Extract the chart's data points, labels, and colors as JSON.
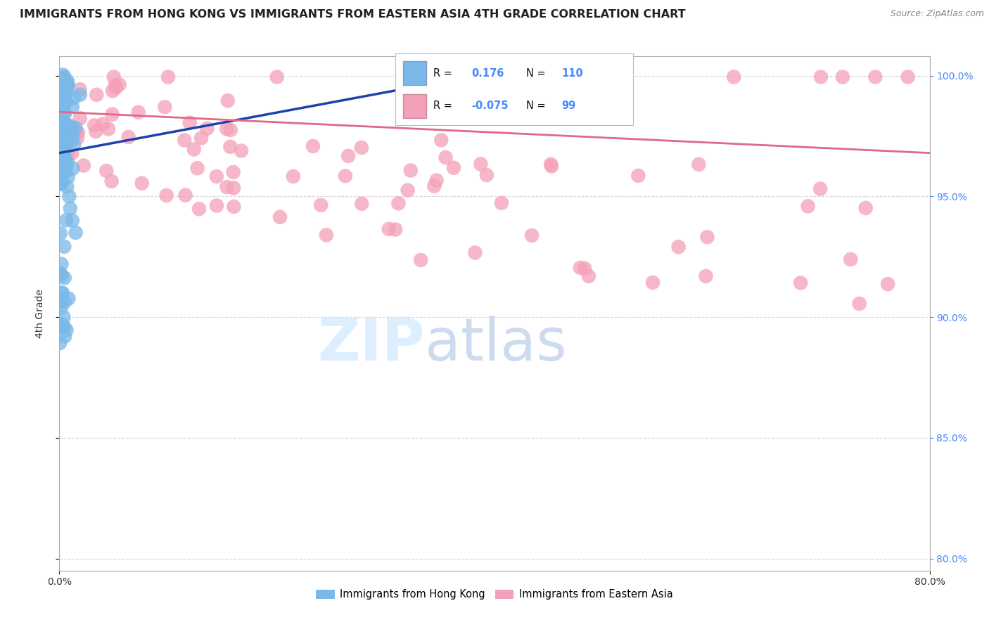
{
  "title": "IMMIGRANTS FROM HONG KONG VS IMMIGRANTS FROM EASTERN ASIA 4TH GRADE CORRELATION CHART",
  "source": "Source: ZipAtlas.com",
  "ylabel": "4th Grade",
  "legend_label1": "Immigrants from Hong Kong",
  "legend_label2": "Immigrants from Eastern Asia",
  "R1": 0.176,
  "N1": 110,
  "R2": -0.075,
  "N2": 99,
  "color1": "#7ab8e8",
  "color2": "#f4a0b8",
  "trendline1_color": "#1a44aa",
  "trendline2_color": "#e06888",
  "watermark_zip": "ZIP",
  "watermark_atlas": "atlas",
  "watermark_color_zip": "#ddeeff",
  "watermark_color_atlas": "#c8d8f0",
  "title_color": "#222222",
  "source_color": "#888888",
  "right_axis_color": "#4488ff",
  "xlim": [
    0.0,
    0.8
  ],
  "ylim": [
    0.795,
    1.008
  ],
  "yticks": [
    0.8,
    0.85,
    0.9,
    0.95,
    1.0
  ],
  "grid_color": "#cccccc",
  "plot_bg": "#ffffff",
  "trendline1_x0": 0.0,
  "trendline1_y0": 0.968,
  "trendline1_x1": 0.37,
  "trendline1_y1": 0.999,
  "trendline2_x0": 0.0,
  "trendline2_y0": 0.985,
  "trendline2_x1": 0.8,
  "trendline2_y1": 0.968
}
